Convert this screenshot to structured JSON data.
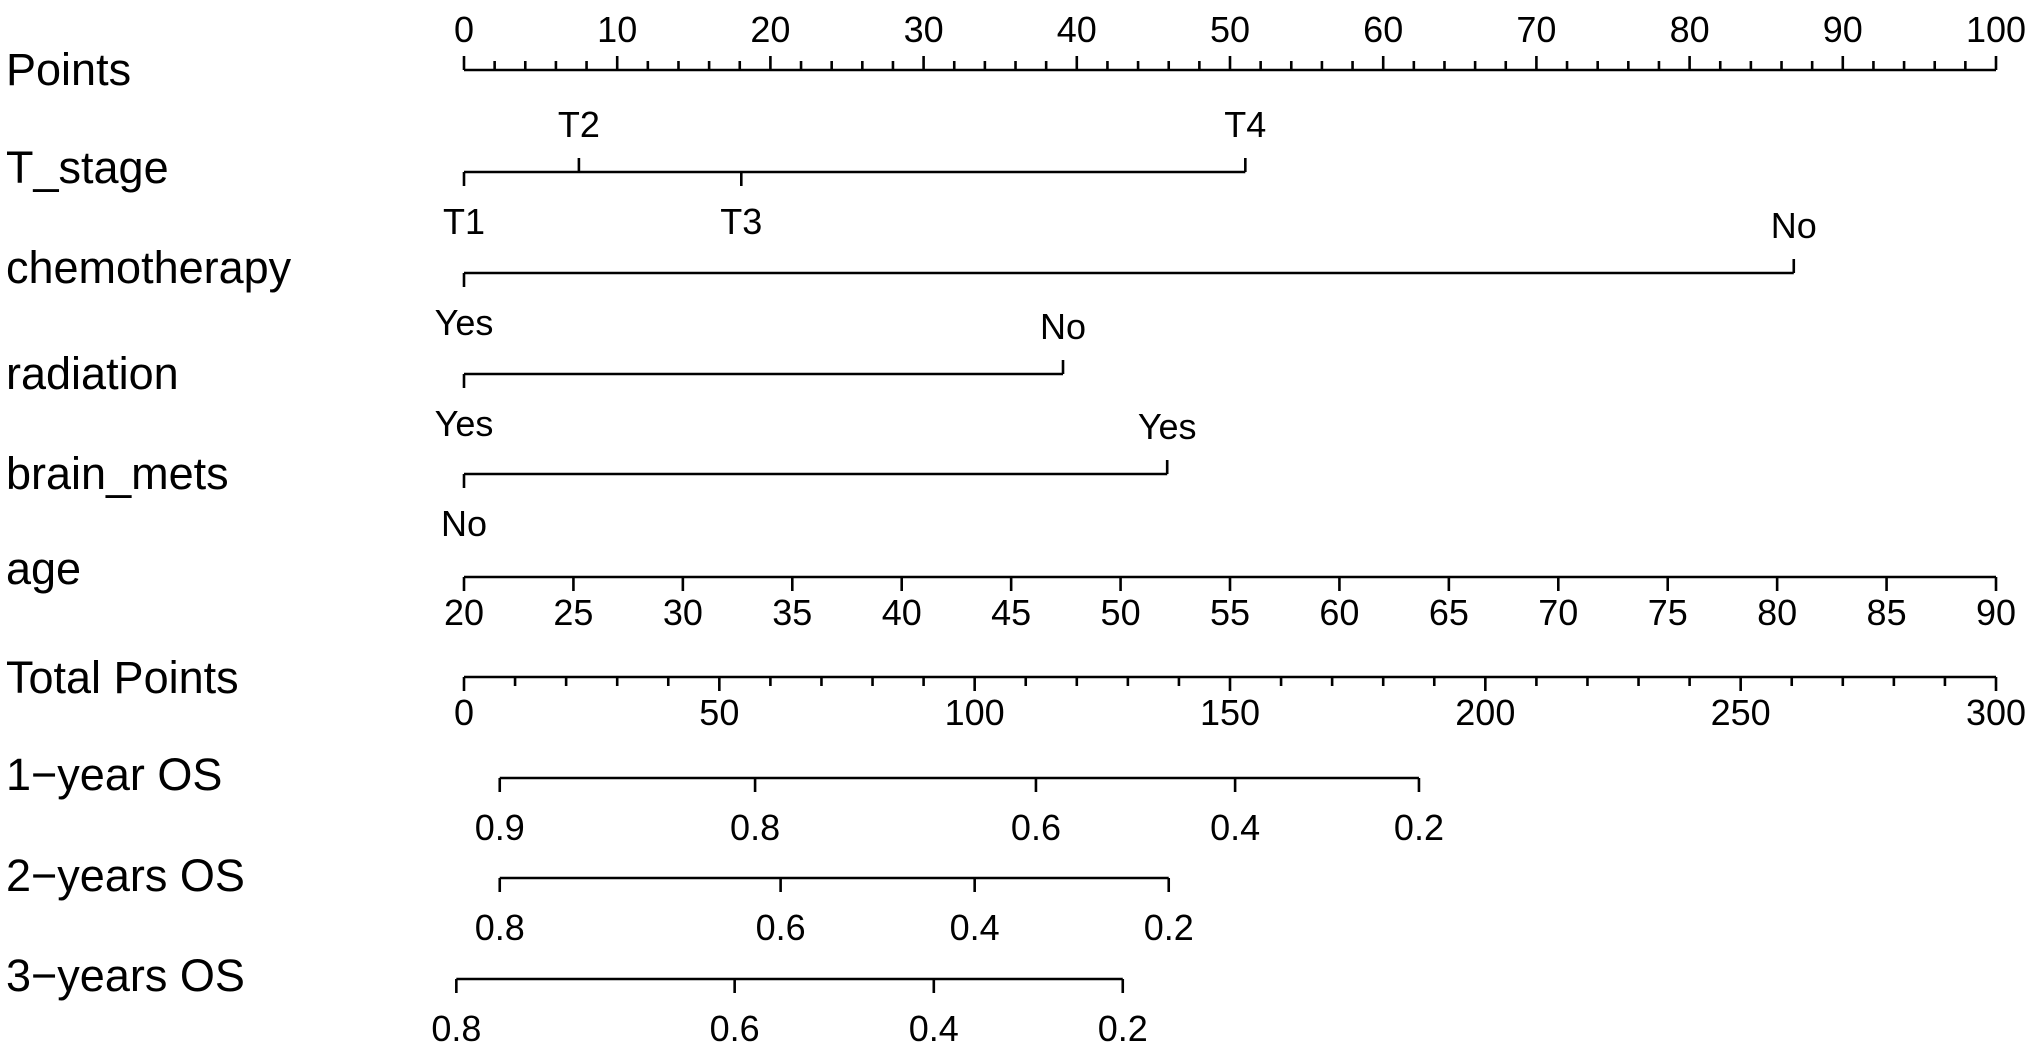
{
  "chart_data": {
    "type": "nomogram",
    "title": "",
    "rows": [
      {
        "label": "Points",
        "kind": "axis",
        "min": 0,
        "max": 100,
        "labeled_ticks": [
          0,
          10,
          20,
          30,
          40,
          50,
          60,
          70,
          80,
          90,
          100
        ],
        "minor_step": 2,
        "tick_labels_side": "above"
      },
      {
        "label": "T_stage",
        "kind": "levels",
        "levels": [
          {
            "name": "T1",
            "points": 0,
            "label_side": "below"
          },
          {
            "name": "T2",
            "points": 7.5,
            "label_side": "above"
          },
          {
            "name": "T3",
            "points": 18.1,
            "label_side": "below"
          },
          {
            "name": "T4",
            "points": 51,
            "label_side": "above"
          }
        ]
      },
      {
        "label": "chemotherapy",
        "kind": "levels",
        "levels": [
          {
            "name": "Yes",
            "points": 0,
            "label_side": "below"
          },
          {
            "name": "No",
            "points": 86.8,
            "label_side": "above"
          }
        ]
      },
      {
        "label": "radiation",
        "kind": "levels",
        "levels": [
          {
            "name": "Yes",
            "points": 0,
            "label_side": "below"
          },
          {
            "name": "No",
            "points": 39.1,
            "label_side": "above"
          }
        ]
      },
      {
        "label": "brain_mets",
        "kind": "levels",
        "levels": [
          {
            "name": "No",
            "points": 0,
            "label_side": "below"
          },
          {
            "name": "Yes",
            "points": 45.9,
            "label_side": "above"
          }
        ]
      },
      {
        "label": "age",
        "kind": "axis",
        "min": 20,
        "max": 90,
        "labeled_ticks": [
          20,
          25,
          30,
          35,
          40,
          45,
          50,
          55,
          60,
          65,
          70,
          75,
          80,
          85,
          90
        ],
        "minor_step": 5,
        "tick_labels_side": "below"
      },
      {
        "label": "Total Points",
        "kind": "axis",
        "min": 0,
        "max": 300,
        "labeled_ticks": [
          0,
          50,
          100,
          150,
          200,
          250,
          300
        ],
        "minor_step": 10,
        "tick_labels_side": "below"
      },
      {
        "label": "1−year OS",
        "kind": "probability",
        "total_points_range": [
          7,
          187
        ],
        "ticks": [
          {
            "value": "0.9",
            "total_points": 7
          },
          {
            "value": "0.8",
            "total_points": 57
          },
          {
            "value": "0.6",
            "total_points": 112
          },
          {
            "value": "0.4",
            "total_points": 151
          },
          {
            "value": "0.2",
            "total_points": 187
          }
        ]
      },
      {
        "label": "2−years OS",
        "kind": "probability",
        "total_points_range": [
          7,
          138
        ],
        "ticks": [
          {
            "value": "0.8",
            "total_points": 7
          },
          {
            "value": "0.6",
            "total_points": 62
          },
          {
            "value": "0.4",
            "total_points": 100
          },
          {
            "value": "0.2",
            "total_points": 138
          }
        ]
      },
      {
        "label": "3−years OS",
        "kind": "probability",
        "total_points_range": [
          -1.5,
          129
        ],
        "ticks": [
          {
            "value": "0.8",
            "total_points": -1.5
          },
          {
            "value": "0.6",
            "total_points": 53
          },
          {
            "value": "0.4",
            "total_points": 92
          },
          {
            "value": "0.2",
            "total_points": 129
          }
        ]
      }
    ]
  }
}
